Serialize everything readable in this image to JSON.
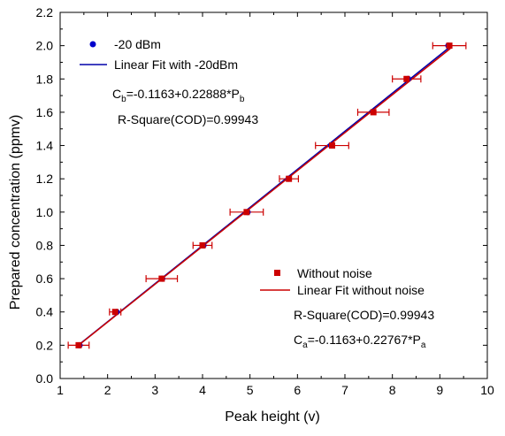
{
  "chart_data": {
    "type": "scatter",
    "xlabel": "Peak height (v)",
    "ylabel": "Prepared concentration (ppmv)",
    "xlim": [
      1,
      10
    ],
    "ylim": [
      0.0,
      2.2
    ],
    "xticks": [
      "1",
      "2",
      "3",
      "4",
      "5",
      "6",
      "7",
      "8",
      "9",
      "10"
    ],
    "yticks": [
      "0.0",
      "0.2",
      "0.4",
      "0.6",
      "0.8",
      "1.0",
      "1.2",
      "1.4",
      "1.6",
      "1.8",
      "2.0",
      "2.2"
    ],
    "grid": false,
    "series": [
      {
        "name": "-20 dBm",
        "marker": "circle",
        "color": "#0000CC",
        "x": [
          1.41,
          2.19,
          3.15,
          4.02,
          4.95,
          5.81,
          6.71,
          8.33,
          9.18
        ],
        "y": [
          0.2,
          0.4,
          0.6,
          0.8,
          1.0,
          1.2,
          1.4,
          1.8,
          2.0
        ]
      },
      {
        "name": "Without noise",
        "marker": "square",
        "color": "#CC0000",
        "x": [
          1.39,
          2.16,
          3.14,
          4.0,
          4.93,
          5.82,
          6.73,
          7.6,
          8.3,
          9.2
        ],
        "y": [
          0.2,
          0.4,
          0.6,
          0.8,
          1.0,
          1.2,
          1.4,
          1.6,
          1.8,
          2.0
        ],
        "xerr": [
          0.22,
          0.12,
          0.33,
          0.2,
          0.35,
          0.2,
          0.35,
          0.33,
          0.3,
          0.35
        ]
      }
    ],
    "fits": [
      {
        "name": "Linear Fit with -20dBm",
        "color": "#0000AA",
        "x_range": [
          1.39,
          9.22
        ],
        "intercept": -0.1163,
        "slope": 0.22888
      },
      {
        "name": "Linear Fit without noise",
        "color": "#CC0000",
        "x_range": [
          1.39,
          9.22
        ],
        "intercept": -0.1163,
        "slope": 0.22767
      }
    ],
    "annotations": {
      "eq_b": {
        "main": "C",
        "sub1": "b",
        "mid": "=-0.1163+0.22888*P",
        "sub2": "b"
      },
      "r2_b": "R-Square(COD)=0.99943",
      "r2_a": "R-Square(COD)=0.99943",
      "eq_a": {
        "main": "C",
        "sub1": "a",
        "mid": "=-0.1163+0.22767*P",
        "sub2": "a"
      }
    }
  }
}
